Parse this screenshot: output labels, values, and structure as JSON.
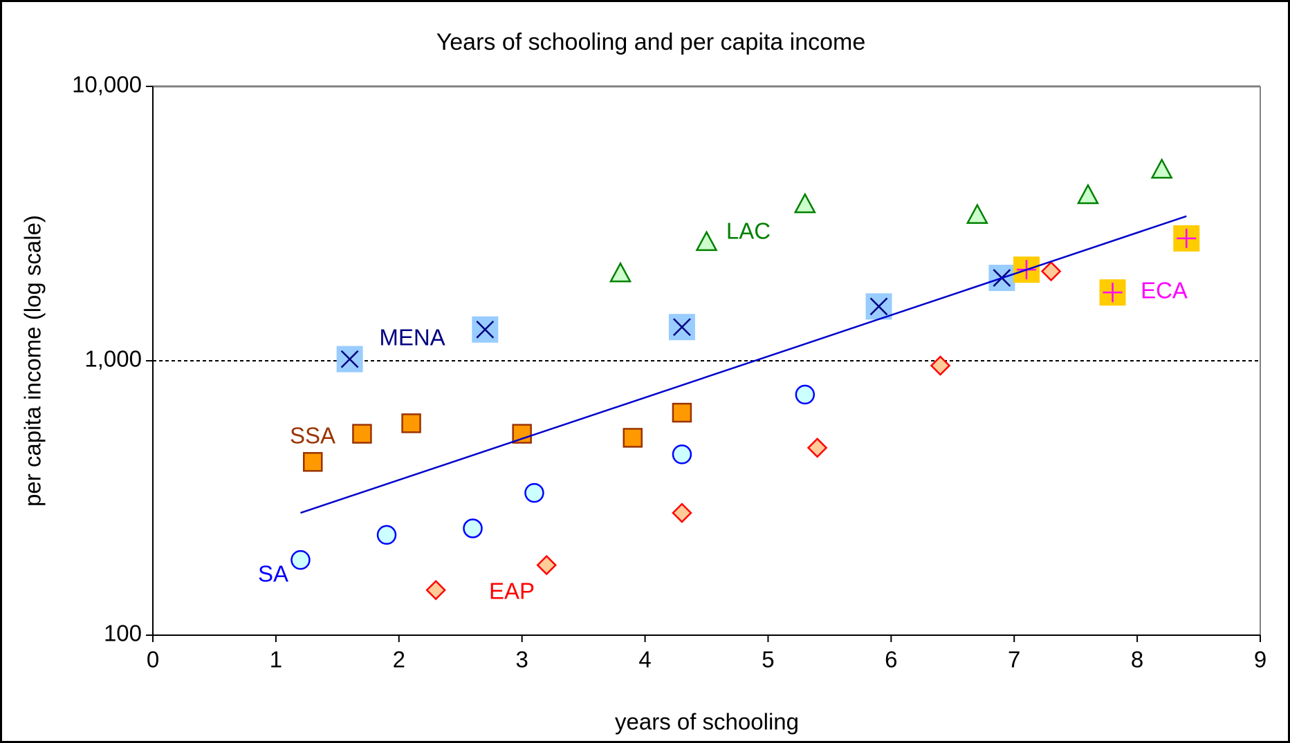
{
  "chart_data": {
    "type": "scatter",
    "title": "Years of schooling and per capita income",
    "x_label": "years of schooling",
    "y_label": "per capita income (log scale)",
    "xlim": [
      0,
      9
    ],
    "xticks": [
      0,
      1,
      2,
      3,
      4,
      5,
      6,
      7,
      8,
      9
    ],
    "ylim": [
      100,
      10000
    ],
    "y_log_scale": true,
    "yticks": [
      100,
      {
        "value": 1000,
        "label": "1,000"
      },
      {
        "value": 10000,
        "label": "10,000"
      }
    ],
    "grid_dashed_at": [
      {
        "value": 1000,
        "label": "1,000"
      }
    ],
    "series": [
      {
        "name": "SA",
        "marker": "circle",
        "color": "#0000ff",
        "fill": "#ccffff",
        "x": [
          1.2,
          1.9,
          2.6,
          3.1,
          4.3,
          5.3
        ],
        "values": [
          188,
          232,
          245,
          330,
          456,
          753
        ]
      },
      {
        "name": "SSA",
        "marker": "square",
        "color": "#993300",
        "fill": "#ff9900",
        "x": [
          1.3,
          1.7,
          2.1,
          3.0,
          3.9,
          4.3
        ],
        "values": [
          428,
          542,
          592,
          542,
          524,
          647
        ]
      },
      {
        "name": "MENA",
        "marker": "square-x",
        "color": "#000080",
        "fill": "#99ccff",
        "x": [
          1.6,
          2.7,
          4.3,
          5.9,
          6.9
        ],
        "values": [
          1014,
          1300,
          1327,
          1578,
          2005
        ]
      },
      {
        "name": "LAC",
        "marker": "triangle",
        "color": "#008000",
        "fill": "#ccffcc",
        "x": [
          3.8,
          4.5,
          5.3,
          6.7,
          7.6,
          8.2
        ],
        "values": [
          2075,
          2698,
          3707,
          3387,
          4000,
          4952
        ]
      },
      {
        "name": "EAP",
        "marker": "diamond",
        "color": "#ff0000",
        "fill": "#ffcc99",
        "x": [
          2.3,
          3.2,
          4.3,
          5.4,
          6.4,
          7.3
        ],
        "values": [
          146,
          180,
          279,
          482,
          960,
          2119
        ]
      },
      {
        "name": "ECA",
        "marker": "square-plus",
        "color": "#ff00ff",
        "fill": "#ffcc00",
        "x": [
          7.1,
          7.8,
          8.4
        ],
        "values": [
          2148,
          1774,
          2793
        ]
      },
      {
        "marker": "line",
        "color": "#0000cc",
        "x": [
          1.2,
          5.0,
          8.4
        ],
        "values": [
          279,
          1038,
          3365
        ]
      }
    ]
  }
}
